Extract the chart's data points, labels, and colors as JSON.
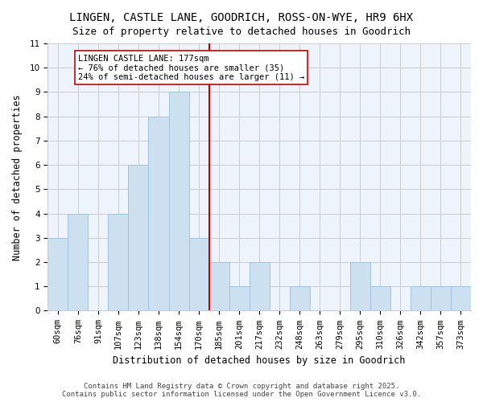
{
  "title": "LINGEN, CASTLE LANE, GOODRICH, ROSS-ON-WYE, HR9 6HX",
  "subtitle": "Size of property relative to detached houses in Goodrich",
  "xlabel": "Distribution of detached houses by size in Goodrich",
  "ylabel": "Number of detached properties",
  "categories": [
    "60sqm",
    "76sqm",
    "91sqm",
    "107sqm",
    "123sqm",
    "138sqm",
    "154sqm",
    "170sqm",
    "185sqm",
    "201sqm",
    "217sqm",
    "232sqm",
    "248sqm",
    "263sqm",
    "279sqm",
    "295sqm",
    "310sqm",
    "326sqm",
    "342sqm",
    "357sqm",
    "373sqm"
  ],
  "values": [
    3,
    4,
    0,
    4,
    6,
    8,
    9,
    3,
    2,
    1,
    2,
    0,
    1,
    0,
    0,
    2,
    1,
    0,
    1,
    1,
    1
  ],
  "bar_color": "#cce0f0",
  "bar_edge_color": "#a0c4e0",
  "bar_width": 1.0,
  "property_line_x": 7.5,
  "property_size": "177sqm",
  "annotation_text": "LINGEN CASTLE LANE: 177sqm\n← 76% of detached houses are smaller (35)\n24% of semi-detached houses are larger (11) →",
  "annotation_box_color": "#ffffff",
  "annotation_box_edge_color": "#cc0000",
  "vline_color": "#cc0000",
  "ylim": [
    0,
    11
  ],
  "yticks": [
    0,
    1,
    2,
    3,
    4,
    5,
    6,
    7,
    8,
    9,
    10,
    11
  ],
  "grid_color": "#cccccc",
  "background_color": "#eef4fb",
  "footer_text": "Contains HM Land Registry data © Crown copyright and database right 2025.\nContains public sector information licensed under the Open Government Licence v3.0.",
  "title_fontsize": 10,
  "subtitle_fontsize": 9,
  "xlabel_fontsize": 8.5,
  "ylabel_fontsize": 8.5,
  "tick_fontsize": 7.5,
  "annotation_fontsize": 7.5,
  "footer_fontsize": 6.5
}
